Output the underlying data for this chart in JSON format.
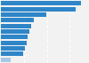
{
  "values": [
    17500,
    16200,
    9800,
    7200,
    6600,
    6200,
    5900,
    5600,
    5200,
    4900,
    2100
  ],
  "bar_color": "#2e86c8",
  "last_bar_color": "#a8c8e8",
  "background_color": "#f2f2f2",
  "gridline_color": "#ffffff",
  "bar_height": 0.78,
  "xlim_max": 19000
}
